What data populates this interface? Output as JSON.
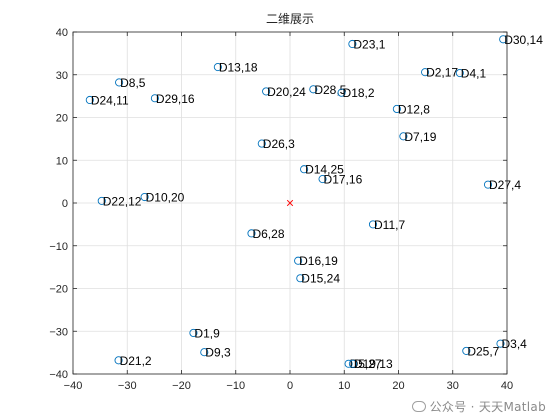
{
  "chart_data": {
    "type": "scatter",
    "title": "二维展示",
    "xlim": [
      -40,
      40
    ],
    "ylim": [
      -40,
      40
    ],
    "xticks": [
      -40,
      -30,
      -20,
      -10,
      0,
      10,
      20,
      30,
      40
    ],
    "yticks": [
      -40,
      -30,
      -20,
      -10,
      0,
      10,
      20,
      30,
      40
    ],
    "grid": true,
    "marker_color": "#0072BD",
    "center_color": "#FF0000",
    "center": {
      "x": 0,
      "y": 0,
      "marker": "x"
    },
    "points": [
      {
        "x": 11.5,
        "y": 37.2,
        "label": "D23,1"
      },
      {
        "x": 39.3,
        "y": 38.3,
        "label": "D30,14"
      },
      {
        "x": -13.3,
        "y": 31.8,
        "label": "D13,18"
      },
      {
        "x": 24.9,
        "y": 30.6,
        "label": "D2,17"
      },
      {
        "x": 31.3,
        "y": 30.4,
        "label": "D4,1"
      },
      {
        "x": -31.5,
        "y": 28.2,
        "label": "D8,5"
      },
      {
        "x": 4.3,
        "y": 26.6,
        "label": "D28,5"
      },
      {
        "x": -4.4,
        "y": 26.1,
        "label": "D20,24"
      },
      {
        "x": 9.5,
        "y": 25.8,
        "label": "D18,2"
      },
      {
        "x": -36.9,
        "y": 24.1,
        "label": "D24,11"
      },
      {
        "x": -24.9,
        "y": 24.5,
        "label": "D29,16"
      },
      {
        "x": 19.7,
        "y": 22.0,
        "label": "D12,8"
      },
      {
        "x": 20.9,
        "y": 15.6,
        "label": "D7,19"
      },
      {
        "x": -5.2,
        "y": 13.9,
        "label": "D26,3"
      },
      {
        "x": 2.6,
        "y": 7.9,
        "label": "D14,25"
      },
      {
        "x": 6.0,
        "y": 5.6,
        "label": "D17,16"
      },
      {
        "x": 36.5,
        "y": 4.3,
        "label": "D27,4"
      },
      {
        "x": -26.8,
        "y": 1.4,
        "label": "D10,20"
      },
      {
        "x": -34.7,
        "y": 0.5,
        "label": "D22,12"
      },
      {
        "x": 15.3,
        "y": -5.0,
        "label": "D11,7"
      },
      {
        "x": -7.1,
        "y": -7.1,
        "label": "D6,28"
      },
      {
        "x": 1.5,
        "y": -13.5,
        "label": "D16,19"
      },
      {
        "x": 1.9,
        "y": -17.6,
        "label": "D15,24"
      },
      {
        "x": -17.8,
        "y": -30.4,
        "label": "D1,9"
      },
      {
        "x": -15.8,
        "y": -34.9,
        "label": "D9,3"
      },
      {
        "x": 38.8,
        "y": -32.9,
        "label": "D3,4"
      },
      {
        "x": -31.6,
        "y": -36.8,
        "label": "D21,2"
      },
      {
        "x": 32.5,
        "y": -34.6,
        "label": "D25,7"
      },
      {
        "x": 10.8,
        "y": -37.6,
        "label": "D5,27"
      },
      {
        "x": 11.6,
        "y": -37.6,
        "label": "D19,13"
      }
    ]
  },
  "watermark": {
    "text": "公众号 · 天天Matlab"
  }
}
